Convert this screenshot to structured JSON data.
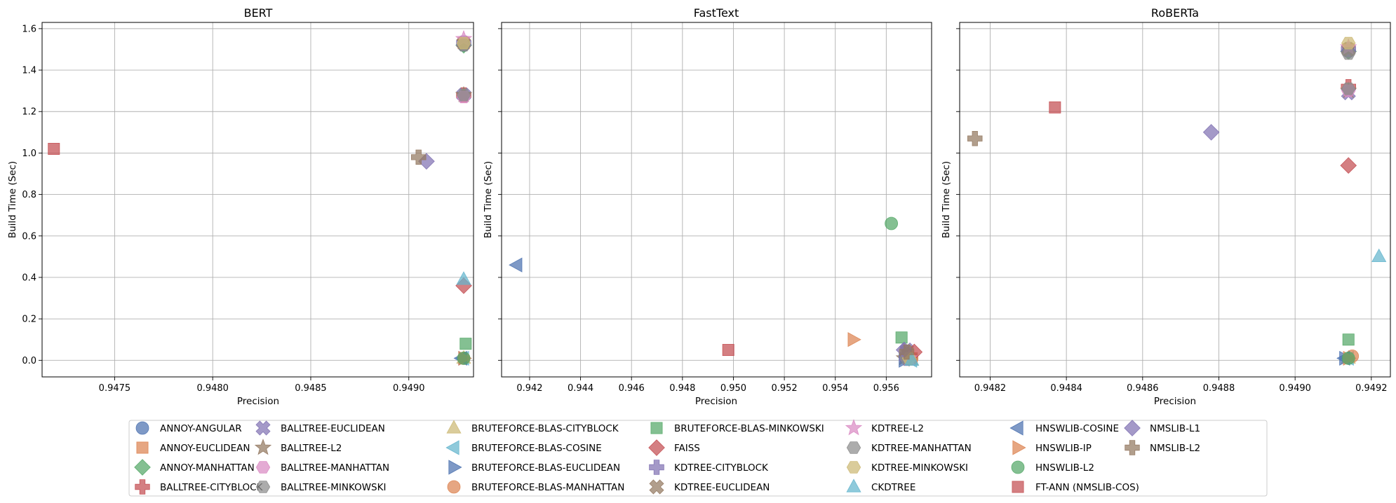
{
  "chart_data": {
    "type": "scatter",
    "shared_y_axis": true,
    "ylabel": "Build Time (Sec)",
    "xlabel": "Precision",
    "ylim": [
      -0.08,
      1.63
    ],
    "y_ticks": [
      {
        "value": 0.0,
        "label": "0.0"
      },
      {
        "value": 0.2,
        "label": "0.2"
      },
      {
        "value": 0.4,
        "label": "0.4"
      },
      {
        "value": 0.6,
        "label": "0.6"
      },
      {
        "value": 0.8,
        "label": "0.8"
      },
      {
        "value": 1.0,
        "label": "1.0"
      },
      {
        "value": 1.2,
        "label": "1.2"
      },
      {
        "value": 1.4,
        "label": "1.4"
      },
      {
        "value": 1.6,
        "label": "1.6"
      }
    ],
    "grid": true,
    "legend_position": "bottom-center",
    "methods": [
      {
        "name": "ANNOY-ANGULAR",
        "marker": "circle",
        "color": "#4c72b0"
      },
      {
        "name": "ANNOY-EUCLIDEAN",
        "marker": "square",
        "color": "#dd8452"
      },
      {
        "name": "ANNOY-MANHATTAN",
        "marker": "diamond",
        "color": "#55a868"
      },
      {
        "name": "BALLTREE-CITYBLOCK",
        "marker": "plus",
        "color": "#c44e52"
      },
      {
        "name": "BALLTREE-EUCLIDEAN",
        "marker": "x",
        "color": "#8172b3"
      },
      {
        "name": "BALLTREE-L2",
        "marker": "star",
        "color": "#937860"
      },
      {
        "name": "BALLTREE-MANHATTAN",
        "marker": "hexagon",
        "color": "#da8bc3"
      },
      {
        "name": "BALLTREE-MINKOWSKI",
        "marker": "hexagon",
        "color": "#8c8c8c"
      },
      {
        "name": "BRUTEFORCE-BLAS-CITYBLOCK",
        "marker": "triangle-up",
        "color": "#ccb974"
      },
      {
        "name": "BRUTEFORCE-BLAS-COSINE",
        "marker": "triangle-left",
        "color": "#64b5cd"
      },
      {
        "name": "BRUTEFORCE-BLAS-EUCLIDEAN",
        "marker": "triangle-right",
        "color": "#4c72b0"
      },
      {
        "name": "BRUTEFORCE-BLAS-MANHATTAN",
        "marker": "circle",
        "color": "#dd8452"
      },
      {
        "name": "BRUTEFORCE-BLAS-MINKOWSKI",
        "marker": "square",
        "color": "#55a868"
      },
      {
        "name": "FAISS",
        "marker": "diamond",
        "color": "#c44e52"
      },
      {
        "name": "KDTREE-CITYBLOCK",
        "marker": "plus",
        "color": "#8172b3"
      },
      {
        "name": "KDTREE-EUCLIDEAN",
        "marker": "x",
        "color": "#937860"
      },
      {
        "name": "KDTREE-L2",
        "marker": "star",
        "color": "#da8bc3"
      },
      {
        "name": "KDTREE-MANHATTAN",
        "marker": "hexagon",
        "color": "#8c8c8c"
      },
      {
        "name": "KDTREE-MINKOWSKI",
        "marker": "hexagon",
        "color": "#ccb974"
      },
      {
        "name": "CKDTREE",
        "marker": "triangle-up",
        "color": "#64b5cd"
      },
      {
        "name": "HNSWLIB-COSINE",
        "marker": "triangle-left",
        "color": "#4c72b0"
      },
      {
        "name": "HNSWLIB-IP",
        "marker": "triangle-right",
        "color": "#dd8452"
      },
      {
        "name": "HNSWLIB-L2",
        "marker": "circle",
        "color": "#55a868"
      },
      {
        "name": "FT-ANN (NMSLIB-COS)",
        "marker": "square",
        "color": "#c44e52"
      },
      {
        "name": "NMSLIB-L1",
        "marker": "diamond",
        "color": "#8172b3"
      },
      {
        "name": "NMSLIB-L2",
        "marker": "plus",
        "color": "#937860"
      }
    ],
    "panels": [
      {
        "title": "BERT",
        "xlim": [
          0.94713,
          0.94933
        ],
        "x_ticks": [
          {
            "value": 0.9475,
            "label": "0.9475"
          },
          {
            "value": 0.948,
            "label": "0.9480"
          },
          {
            "value": 0.9485,
            "label": "0.9485"
          },
          {
            "value": 0.949,
            "label": "0.9490"
          }
        ],
        "points": [
          {
            "method": "ANNOY-ANGULAR",
            "x": 0.94928,
            "y": 1.52
          },
          {
            "method": "ANNOY-EUCLIDEAN",
            "x": 0.94928,
            "y": 1.53
          },
          {
            "method": "ANNOY-MANHATTAN",
            "x": 0.94928,
            "y": 1.52
          },
          {
            "method": "BALLTREE-CITYBLOCK",
            "x": 0.94928,
            "y": 1.28
          },
          {
            "method": "BALLTREE-EUCLIDEAN",
            "x": 0.94928,
            "y": 1.28
          },
          {
            "method": "BALLTREE-L2",
            "x": 0.94928,
            "y": 1.28
          },
          {
            "method": "BALLTREE-MANHATTAN",
            "x": 0.94928,
            "y": 1.27
          },
          {
            "method": "BALLTREE-MINKOWSKI",
            "x": 0.94928,
            "y": 1.28
          },
          {
            "method": "BRUTEFORCE-BLAS-CITYBLOCK",
            "x": 0.94928,
            "y": 0.01
          },
          {
            "method": "BRUTEFORCE-BLAS-COSINE",
            "x": 0.94928,
            "y": 0.01
          },
          {
            "method": "BRUTEFORCE-BLAS-EUCLIDEAN",
            "x": 0.94928,
            "y": 0.01
          },
          {
            "method": "BRUTEFORCE-BLAS-MANHATTAN",
            "x": 0.94928,
            "y": 0.01
          },
          {
            "method": "BRUTEFORCE-BLAS-MINKOWSKI",
            "x": 0.94929,
            "y": 0.08
          },
          {
            "method": "FAISS",
            "x": 0.94928,
            "y": 0.36
          },
          {
            "method": "KDTREE-CITYBLOCK",
            "x": 0.94928,
            "y": 1.53
          },
          {
            "method": "KDTREE-EUCLIDEAN",
            "x": 0.94928,
            "y": 1.53
          },
          {
            "method": "KDTREE-L2",
            "x": 0.94928,
            "y": 1.55
          },
          {
            "method": "KDTREE-MANHATTAN",
            "x": 0.94928,
            "y": 1.52
          },
          {
            "method": "KDTREE-MINKOWSKI",
            "x": 0.94928,
            "y": 1.53
          },
          {
            "method": "CKDTREE",
            "x": 0.94928,
            "y": 0.39
          },
          {
            "method": "HNSWLIB-COSINE",
            "x": 0.94927,
            "y": 0.01
          },
          {
            "method": "HNSWLIB-IP",
            "x": 0.94928,
            "y": 0.01
          },
          {
            "method": "HNSWLIB-L2",
            "x": 0.94928,
            "y": 0.01
          },
          {
            "method": "FT-ANN (NMSLIB-COS)",
            "x": 0.94719,
            "y": 1.02
          },
          {
            "method": "NMSLIB-L1",
            "x": 0.94909,
            "y": 0.96
          },
          {
            "method": "NMSLIB-L2",
            "x": 0.94905,
            "y": 0.98
          }
        ]
      },
      {
        "title": "FastText",
        "xlim": [
          0.9409,
          0.95778
        ],
        "x_ticks": [
          {
            "value": 0.942,
            "label": "0.942"
          },
          {
            "value": 0.944,
            "label": "0.944"
          },
          {
            "value": 0.946,
            "label": "0.946"
          },
          {
            "value": 0.948,
            "label": "0.948"
          },
          {
            "value": 0.95,
            "label": "0.950"
          },
          {
            "value": 0.952,
            "label": "0.952"
          },
          {
            "value": 0.954,
            "label": "0.954"
          },
          {
            "value": 0.956,
            "label": "0.956"
          }
        ],
        "points": [
          {
            "method": "ANNOY-ANGULAR",
            "x": 0.9568,
            "y": 0.01
          },
          {
            "method": "ANNOY-EUCLIDEAN",
            "x": 0.957,
            "y": 0.01
          },
          {
            "method": "ANNOY-MANHATTAN",
            "x": 0.9569,
            "y": 0.01
          },
          {
            "method": "BALLTREE-CITYBLOCK",
            "x": 0.9568,
            "y": 0.01
          },
          {
            "method": "BALLTREE-EUCLIDEAN",
            "x": 0.9568,
            "y": 0.05
          },
          {
            "method": "BALLTREE-L2",
            "x": 0.9567,
            "y": 0.01
          },
          {
            "method": "BALLTREE-MANHATTAN",
            "x": 0.9568,
            "y": 0.01
          },
          {
            "method": "BALLTREE-MINKOWSKI",
            "x": 0.9568,
            "y": 0.01
          },
          {
            "method": "BRUTEFORCE-BLAS-CITYBLOCK",
            "x": 0.957,
            "y": 0.0
          },
          {
            "method": "BRUTEFORCE-BLAS-COSINE",
            "x": 0.957,
            "y": 0.0
          },
          {
            "method": "BRUTEFORCE-BLAS-EUCLIDEAN",
            "x": 0.9567,
            "y": 0.0
          },
          {
            "method": "BRUTEFORCE-BLAS-MANHATTAN",
            "x": 0.957,
            "y": 0.01
          },
          {
            "method": "BRUTEFORCE-BLAS-MINKOWSKI",
            "x": 0.9566,
            "y": 0.11
          },
          {
            "method": "FAISS",
            "x": 0.9571,
            "y": 0.04
          },
          {
            "method": "KDTREE-CITYBLOCK",
            "x": 0.9568,
            "y": 0.01
          },
          {
            "method": "KDTREE-EUCLIDEAN",
            "x": 0.9568,
            "y": 0.04
          },
          {
            "method": "KDTREE-L2",
            "x": 0.9569,
            "y": 0.01
          },
          {
            "method": "KDTREE-MANHATTAN",
            "x": 0.9568,
            "y": 0.01
          },
          {
            "method": "KDTREE-MINKOWSKI",
            "x": 0.9569,
            "y": 0.01
          },
          {
            "method": "CKDTREE",
            "x": 0.957,
            "y": 0.0
          },
          {
            "method": "HNSWLIB-COSINE",
            "x": 0.9415,
            "y": 0.46
          },
          {
            "method": "HNSWLIB-IP",
            "x": 0.9547,
            "y": 0.1
          },
          {
            "method": "HNSWLIB-L2",
            "x": 0.9562,
            "y": 0.66
          },
          {
            "method": "FT-ANN (NMSLIB-COS)",
            "x": 0.9498,
            "y": 0.05
          },
          {
            "method": "NMSLIB-L1",
            "x": 0.9567,
            "y": 0.05
          },
          {
            "method": "NMSLIB-L2",
            "x": 0.9568,
            "y": 0.04
          }
        ]
      },
      {
        "title": "RoBERTa",
        "xlim": [
          0.94812,
          0.94925
        ],
        "x_ticks": [
          {
            "value": 0.9482,
            "label": "0.9482"
          },
          {
            "value": 0.9484,
            "label": "0.9484"
          },
          {
            "value": 0.9486,
            "label": "0.9486"
          },
          {
            "value": 0.9488,
            "label": "0.9488"
          },
          {
            "value": 0.949,
            "label": "0.9490"
          },
          {
            "value": 0.9492,
            "label": "0.9492"
          }
        ],
        "points": [
          {
            "method": "ANNOY-ANGULAR",
            "x": 0.94914,
            "y": 1.49
          },
          {
            "method": "ANNOY-EUCLIDEAN",
            "x": 0.94914,
            "y": 1.5
          },
          {
            "method": "ANNOY-MANHATTAN",
            "x": 0.94914,
            "y": 1.49
          },
          {
            "method": "BALLTREE-CITYBLOCK",
            "x": 0.94914,
            "y": 1.32
          },
          {
            "method": "BALLTREE-EUCLIDEAN",
            "x": 0.94914,
            "y": 1.29
          },
          {
            "method": "BALLTREE-L2",
            "x": 0.94914,
            "y": 1.3
          },
          {
            "method": "BALLTREE-MANHATTAN",
            "x": 0.94914,
            "y": 1.3
          },
          {
            "method": "BALLTREE-MINKOWSKI",
            "x": 0.94914,
            "y": 1.31
          },
          {
            "method": "BRUTEFORCE-BLAS-CITYBLOCK",
            "x": 0.94914,
            "y": 0.01
          },
          {
            "method": "BRUTEFORCE-BLAS-COSINE",
            "x": 0.94914,
            "y": 0.01
          },
          {
            "method": "BRUTEFORCE-BLAS-EUCLIDEAN",
            "x": 0.94913,
            "y": 0.01
          },
          {
            "method": "BRUTEFORCE-BLAS-MANHATTAN",
            "x": 0.94915,
            "y": 0.02
          },
          {
            "method": "BRUTEFORCE-BLAS-MINKOWSKI",
            "x": 0.94914,
            "y": 0.1
          },
          {
            "method": "FAISS",
            "x": 0.94914,
            "y": 0.94
          },
          {
            "method": "KDTREE-CITYBLOCK",
            "x": 0.94914,
            "y": 1.5
          },
          {
            "method": "KDTREE-EUCLIDEAN",
            "x": 0.94914,
            "y": 1.5
          },
          {
            "method": "KDTREE-L2",
            "x": 0.94914,
            "y": 1.51
          },
          {
            "method": "KDTREE-MANHATTAN",
            "x": 0.94914,
            "y": 1.48
          },
          {
            "method": "KDTREE-MINKOWSKI",
            "x": 0.94914,
            "y": 1.53
          },
          {
            "method": "CKDTREE",
            "x": 0.94922,
            "y": 0.5
          },
          {
            "method": "HNSWLIB-COSINE",
            "x": 0.94913,
            "y": 0.01
          },
          {
            "method": "HNSWLIB-IP",
            "x": 0.94914,
            "y": 0.01
          },
          {
            "method": "HNSWLIB-L2",
            "x": 0.94914,
            "y": 0.01
          },
          {
            "method": "FT-ANN (NMSLIB-COS)",
            "x": 0.94837,
            "y": 1.22
          },
          {
            "method": "NMSLIB-L1",
            "x": 0.94878,
            "y": 1.1
          },
          {
            "method": "NMSLIB-L2",
            "x": 0.94816,
            "y": 1.07
          }
        ]
      }
    ]
  }
}
